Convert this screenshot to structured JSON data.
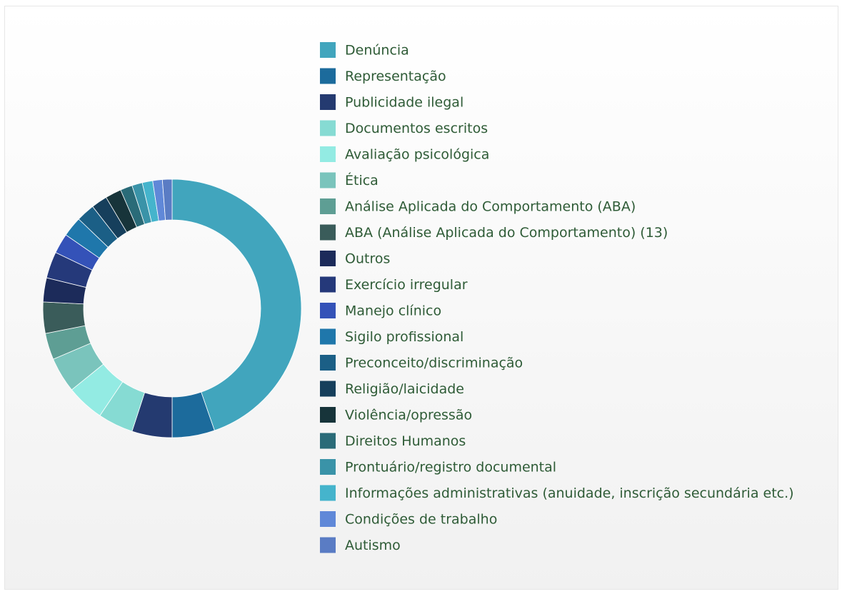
{
  "chart_data": {
    "type": "donut",
    "categories": [
      "Denúncia",
      "Representação",
      "Publicidade ilegal",
      "Documentos escritos",
      "Avaliação psicológica",
      "Ética",
      "Análise Aplicada do Comportamento (ABA)",
      "ABA (Análise Aplicada do Comportamento) (13)",
      "Outros",
      "Exercício irregular",
      "Manejo clínico",
      "Sigilo profissional",
      "Preconceito/discriminação",
      "Religião/laicidade",
      "Violência/opressão",
      "Direitos Humanos",
      "Prontuário/registro documental",
      "Informações administrativas (anuidade, inscrição secundária etc.)",
      "Condições de trabalho",
      "Autismo"
    ],
    "values": [
      44.5,
      5.3,
      5,
      4.4,
      4.7,
      4.4,
      3.3,
      3.9,
      3,
      3.3,
      2.5,
      2.5,
      2.3,
      2,
      2,
      1.5,
      1.3,
      1.3,
      1.2,
      1.2
    ],
    "colors": [
      "#41a5bd",
      "#1c6b9c",
      "#243a70",
      "#86dbd3",
      "#93ebe3",
      "#7ac4bc",
      "#5e9e94",
      "#3a5c5a",
      "#1c2b5a",
      "#25397a",
      "#3452b8",
      "#1f77ab",
      "#1b5f86",
      "#163f5c",
      "#17343a",
      "#2a6b78",
      "#3a93a8",
      "#45b4cc",
      "#6088d8",
      "#5a7cc4"
    ],
    "legend": "right"
  }
}
